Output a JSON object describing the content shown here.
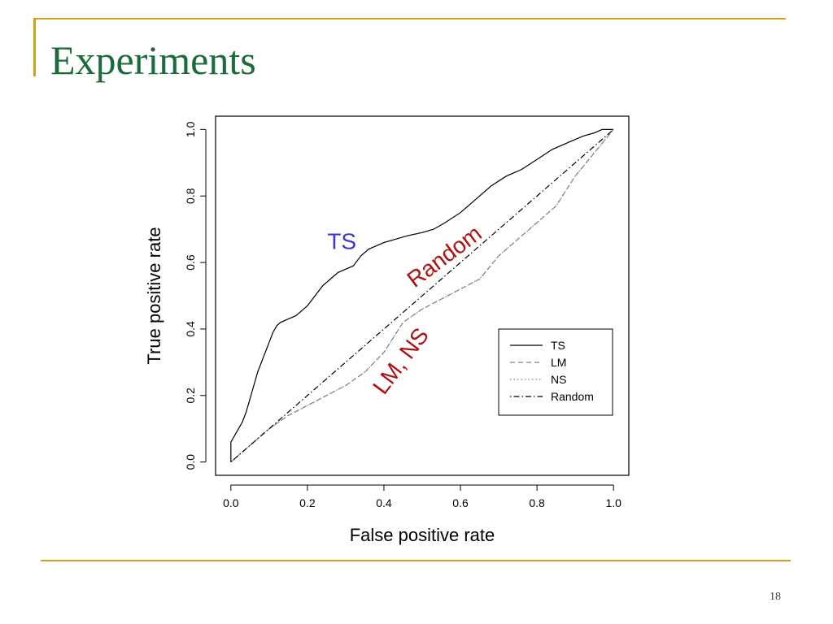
{
  "slide": {
    "title": "Experiments",
    "page_number": "18"
  },
  "colors": {
    "accent": "#d4a017",
    "title": "#1c6b3a",
    "ts_label": "#3a3ad0",
    "annotation_red": "#b01010"
  },
  "chart_data": {
    "type": "line",
    "xlabel": "False positive rate",
    "ylabel": "True positive rate",
    "xlim": [
      -0.04,
      1.04
    ],
    "ylim": [
      -0.04,
      1.04
    ],
    "xticks": [
      "0.0",
      "0.2",
      "0.4",
      "0.6",
      "0.8",
      "1.0"
    ],
    "yticks": [
      "0.0",
      "0.2",
      "0.4",
      "0.6",
      "0.8",
      "1.0"
    ],
    "grid": false,
    "legend_position": "bottom-right",
    "series": [
      {
        "name": "TS",
        "linestyle": "solid",
        "color": "#000000",
        "x": [
          0.0,
          0.0,
          0.01,
          0.02,
          0.03,
          0.04,
          0.05,
          0.06,
          0.07,
          0.08,
          0.09,
          0.1,
          0.11,
          0.12,
          0.13,
          0.15,
          0.17,
          0.19,
          0.2,
          0.22,
          0.24,
          0.26,
          0.28,
          0.3,
          0.32,
          0.34,
          0.36,
          0.38,
          0.4,
          0.43,
          0.46,
          0.5,
          0.53,
          0.56,
          0.6,
          0.64,
          0.68,
          0.72,
          0.76,
          0.8,
          0.84,
          0.88,
          0.92,
          0.95,
          0.97,
          1.0
        ],
        "y": [
          0.0,
          0.06,
          0.08,
          0.1,
          0.12,
          0.15,
          0.19,
          0.23,
          0.27,
          0.3,
          0.33,
          0.36,
          0.39,
          0.41,
          0.42,
          0.43,
          0.44,
          0.46,
          0.47,
          0.5,
          0.53,
          0.55,
          0.57,
          0.58,
          0.59,
          0.62,
          0.64,
          0.65,
          0.66,
          0.67,
          0.68,
          0.69,
          0.7,
          0.72,
          0.75,
          0.79,
          0.83,
          0.86,
          0.88,
          0.91,
          0.94,
          0.96,
          0.98,
          0.99,
          1.0,
          1.0
        ]
      },
      {
        "name": "LM",
        "linestyle": "dashed",
        "color": "#808080",
        "x": [
          0.0,
          0.05,
          0.1,
          0.15,
          0.2,
          0.25,
          0.3,
          0.35,
          0.4,
          0.45,
          0.5,
          0.55,
          0.6,
          0.65,
          0.7,
          0.75,
          0.8,
          0.85,
          0.9,
          0.95,
          1.0
        ],
        "y": [
          0.0,
          0.05,
          0.1,
          0.14,
          0.17,
          0.2,
          0.23,
          0.27,
          0.33,
          0.42,
          0.46,
          0.49,
          0.52,
          0.55,
          0.62,
          0.67,
          0.72,
          0.77,
          0.86,
          0.93,
          1.0
        ]
      },
      {
        "name": "NS",
        "linestyle": "dotted",
        "color": "#808080",
        "x": [
          0.0,
          0.05,
          0.1,
          0.15,
          0.2,
          0.25,
          0.3,
          0.35,
          0.4,
          0.45,
          0.5,
          0.55,
          0.6,
          0.65,
          0.7,
          0.75,
          0.8,
          0.85,
          0.9,
          0.95,
          1.0
        ],
        "y": [
          0.0,
          0.05,
          0.1,
          0.14,
          0.17,
          0.2,
          0.23,
          0.27,
          0.33,
          0.42,
          0.46,
          0.49,
          0.52,
          0.55,
          0.62,
          0.67,
          0.72,
          0.77,
          0.86,
          0.93,
          1.0
        ]
      },
      {
        "name": "Random",
        "linestyle": "dotdash",
        "color": "#000000",
        "x": [
          0.0,
          1.0
        ],
        "y": [
          0.0,
          1.0
        ]
      }
    ],
    "annotations": [
      {
        "text": "TS",
        "x": 0.29,
        "y": 0.64,
        "color": "#3a3ad0",
        "rotation": 0
      },
      {
        "text": "Random",
        "x": 0.57,
        "y": 0.6,
        "color": "#b01010",
        "rotation": -37
      },
      {
        "text": "LM, NS",
        "x": 0.46,
        "y": 0.29,
        "color": "#b01010",
        "rotation": -53
      }
    ]
  }
}
